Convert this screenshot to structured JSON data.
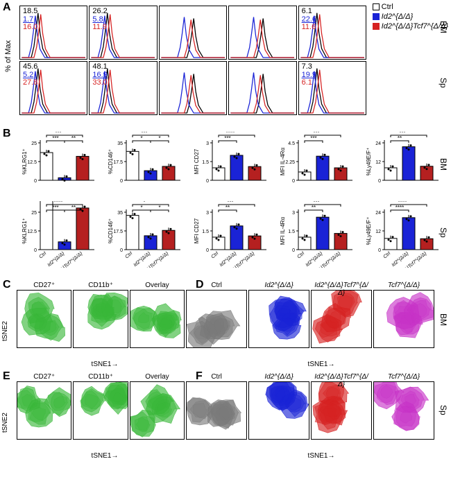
{
  "colors": {
    "ctrl": "#000000",
    "id2": "#1a23d6",
    "id2tcf7": "#d62222",
    "tcf7": "#c732c7",
    "green": "#39b739",
    "grid": "#e0e0e0",
    "barCtrl": "#ffffff",
    "barId2": "#1a23d6",
    "barId2Tcf7": "#b52020"
  },
  "legend": [
    {
      "label": "Ctrl",
      "sw": "open",
      "color": "#000000"
    },
    {
      "label": "Id2^{Δ/Δ}",
      "sw": "solid",
      "color": "#1a23d6"
    },
    {
      "label": "Id2^{Δ/Δ}Tcf7^{Δ/Δ}",
      "sw": "solid",
      "color": "#d62222"
    }
  ],
  "A": {
    "markers": [
      "KLRG1",
      "CD146",
      "CD27",
      "IL4Rα",
      "Ly49E/F"
    ],
    "rows": [
      "BM",
      "Sp"
    ],
    "yAxisLabel": "% of Max",
    "values": {
      "BM": [
        {
          "ctrl": "18.5",
          "id2": "1.7",
          "id2tcf7": "16.0"
        },
        {
          "ctrl": "26.2",
          "id2": "5.8",
          "id2tcf7": "11.9"
        },
        {
          "ctrl": "",
          "id2": "",
          "id2tcf7": ""
        },
        {
          "ctrl": "",
          "id2": "",
          "id2tcf7": ""
        },
        {
          "ctrl": "6.1",
          "id2": "22.6",
          "id2tcf7": "11.6"
        }
      ],
      "Sp": [
        {
          "ctrl": "45.6",
          "id2": "5.2",
          "id2tcf7": "27.8"
        },
        {
          "ctrl": "48.1",
          "id2": "16.9",
          "id2tcf7": "33.0"
        },
        {
          "ctrl": "",
          "id2": "",
          "id2tcf7": ""
        },
        {
          "ctrl": "",
          "id2": "",
          "id2tcf7": ""
        },
        {
          "ctrl": "7.3",
          "id2": "19.9",
          "id2tcf7": "6.1"
        }
      ]
    }
  },
  "B": {
    "rows": [
      "BM",
      "Sp"
    ],
    "xCats": [
      "Ctrl",
      "Id2^{Δ/Δ}",
      "Id2^{Δ/Δ}Tcf7^{Δ/Δ}"
    ],
    "charts": [
      {
        "ylabel": "%KLRG1⁺",
        "ymax": 25,
        "BM": {
          "v": [
            18.5,
            1.7,
            16.0
          ],
          "sig": [
            "***",
            "***",
            "**"
          ]
        },
        "Sp": {
          "v": [
            45.6,
            5.2,
            27.8
          ],
          "sig": [
            "****",
            "***",
            "**"
          ]
        }
      },
      {
        "ylabel": "%CD146⁺",
        "ymax": 35,
        "BM": {
          "v": [
            27,
            9,
            13
          ],
          "sig": [
            "***",
            "*",
            "*"
          ]
        },
        "Sp": {
          "v": [
            32,
            13,
            18
          ],
          "sig": [
            "*",
            "*",
            "*"
          ]
        }
      },
      {
        "ylabel": "MFI CD27",
        "ymax": 3.0,
        "BM": {
          "v": [
            1.0,
            2.0,
            1.1
          ],
          "sig": [
            "****",
            "***",
            ""
          ]
        },
        "Sp": {
          "v": [
            1.0,
            1.9,
            1.1
          ],
          "sig": [
            "***",
            "**",
            ""
          ]
        }
      },
      {
        "ylabel": "MFI IL-4Rα",
        "ymax": 4.5,
        "BM": {
          "v": [
            1.0,
            2.9,
            1.5
          ],
          "sig": [
            "***",
            "***",
            ""
          ]
        },
        "Sp": {
          "v": [
            1.0,
            2.6,
            1.3
          ],
          "sig": [
            "***",
            "**",
            ""
          ]
        }
      },
      {
        "ylabel": "%Ly49E/F⁺",
        "ymax": 24,
        "BM": {
          "v": [
            8.0,
            21.5,
            9.0
          ],
          "sig": [
            "***",
            "**",
            ""
          ]
        },
        "Sp": {
          "v": [
            7.2,
            20.5,
            7.0
          ],
          "sig": [
            "****",
            "****",
            ""
          ]
        }
      }
    ]
  },
  "C": {
    "titles": [
      "CD27⁺",
      "CD11b⁺",
      "Overlay"
    ],
    "color": "#39b739",
    "row": "BM"
  },
  "D": {
    "titles": [
      "Ctrl",
      "Id2^{Δ/Δ}",
      "Id2^{Δ/Δ}Tcf7^{Δ/Δ}",
      "Tcf7^{Δ/Δ}"
    ],
    "colors": [
      "#7a7a7a",
      "#1a23d6",
      "#d62222",
      "#c732c7"
    ],
    "row": "BM"
  },
  "E": {
    "titles": [
      "CD27⁺",
      "CD11b⁺",
      "Overlay"
    ],
    "color": "#39b739",
    "row": "Sp"
  },
  "F": {
    "titles": [
      "Ctrl",
      "Id2^{Δ/Δ}",
      "Id2^{Δ/Δ}Tcf7^{Δ/Δ}",
      "Tcf7^{Δ/Δ}"
    ],
    "colors": [
      "#7a7a7a",
      "#1a23d6",
      "#d62222",
      "#c732c7"
    ],
    "row": "Sp"
  },
  "tsneAxes": {
    "x": "tSNE1",
    "y": "tSNE2"
  }
}
